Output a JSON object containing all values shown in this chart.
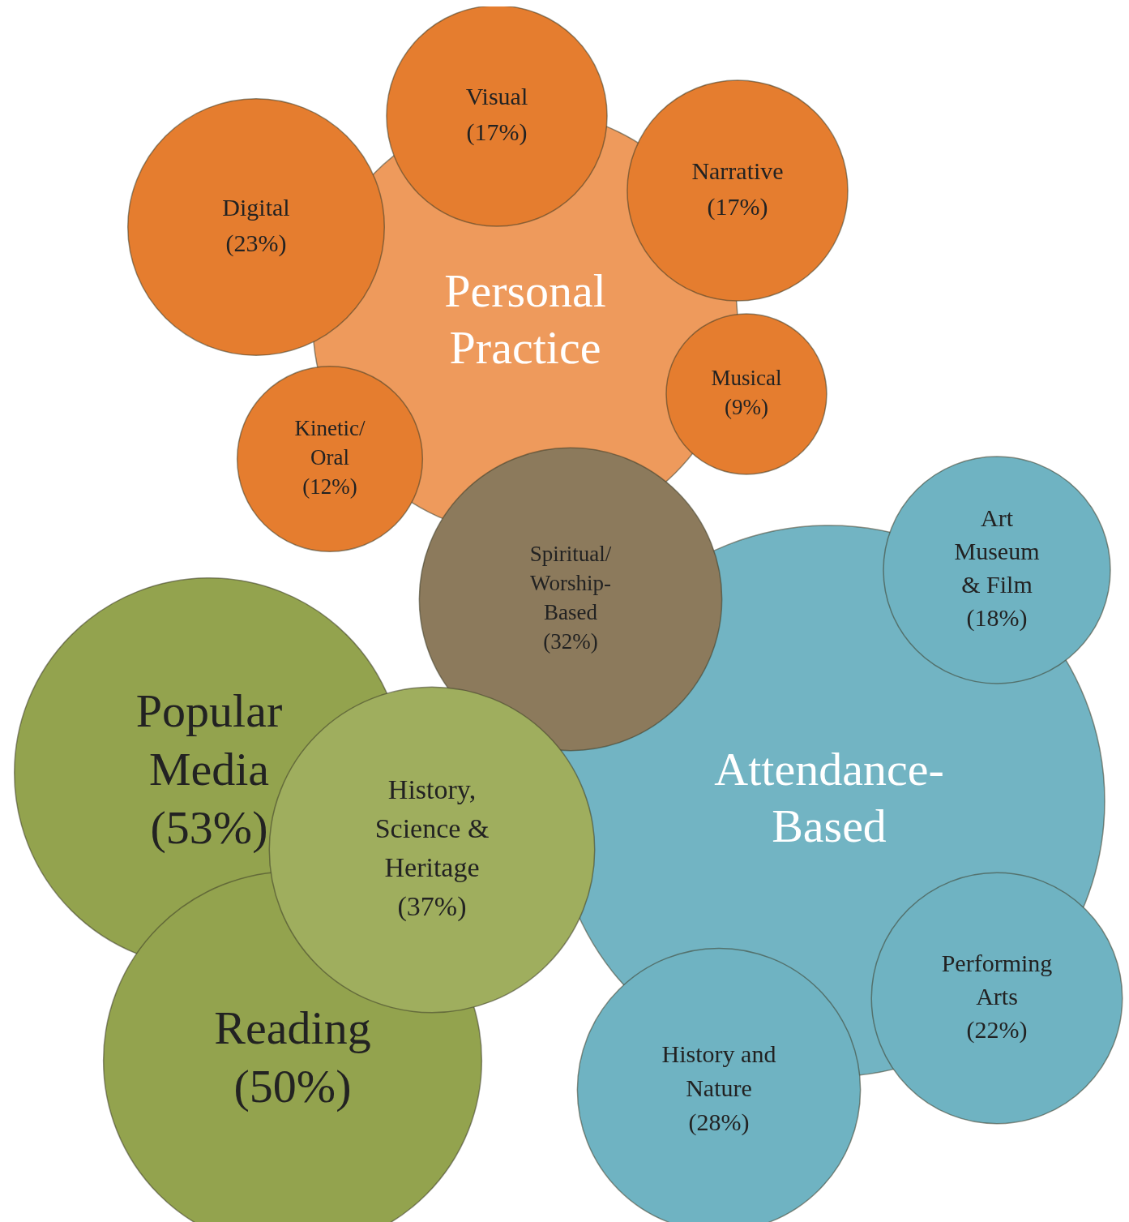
{
  "chart_data": {
    "type": "other",
    "categories": [
      "Personal Practice",
      "Attendance-Based",
      "Visual",
      "Narrative",
      "Digital",
      "Musical",
      "Kinetic/ Oral",
      "Spiritual/ Worship-Based",
      "Art Museum & Film",
      "Popular Media",
      "Reading",
      "History, Science & Heritage",
      "Performing Arts",
      "History and Nature"
    ],
    "values": [
      null,
      null,
      17,
      17,
      23,
      9,
      12,
      32,
      18,
      53,
      50,
      37,
      22,
      28
    ],
    "value_labels": [
      null,
      null,
      "(17%)",
      "(17%)",
      "(23%)",
      "(9%)",
      "(12%)",
      "(32%)",
      "(18%)",
      "(53%)",
      "(50%)",
      "(37%)",
      "(22%)",
      "(28%)"
    ],
    "colors": [
      "#ee9a5c",
      "#72b4c3",
      "#e57d2f",
      "#e57d2f",
      "#e57d2f",
      "#e57d2f",
      "#e57d2f",
      "#8c7a5c",
      "#6fb3c2",
      "#93a34e",
      "#93a34e",
      "#9fae5e",
      "#6fb3c2",
      "#6fb3c2"
    ]
  }
}
